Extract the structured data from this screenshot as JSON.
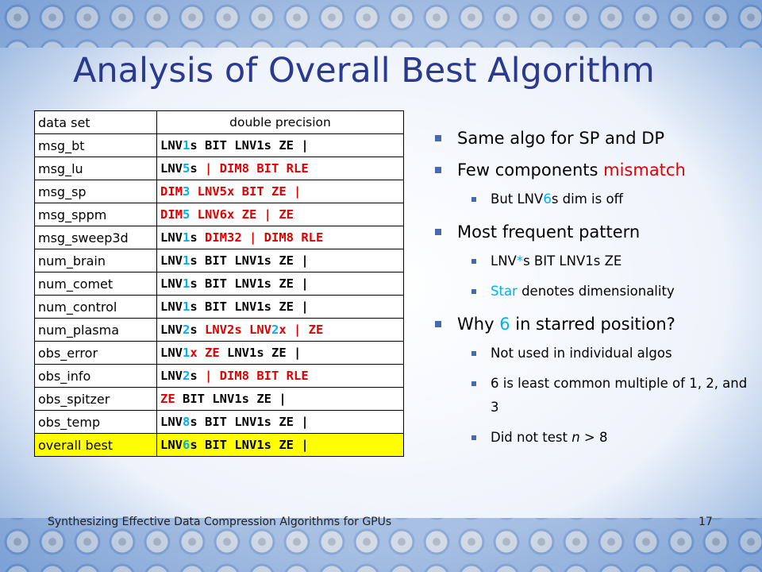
{
  "title": "Analysis of Overall Best Algorithm",
  "table": {
    "header": [
      "data set",
      "double precision"
    ],
    "rows": [
      {
        "name": "msg_bt",
        "algo": [
          {
            "text": "LNV",
            "color": "#000000"
          },
          {
            "text": "1",
            "color": "#00b0f0"
          },
          {
            "text": "s BIT LNV1s ZE |",
            "color": "#000000"
          }
        ]
      },
      {
        "name": "msg_lu",
        "algo": [
          {
            "text": "LNV",
            "color": "#000000"
          },
          {
            "text": "5",
            "color": "#00b0f0"
          },
          {
            "text": "s",
            "color": "#000000"
          },
          {
            "text": " | DIM8 BIT RLE",
            "color": "#e00000"
          }
        ]
      },
      {
        "name": "msg_sp",
        "algo": [
          {
            "text": "DIM",
            "color": "#e00000"
          },
          {
            "text": "3",
            "color": "#00b0f0"
          },
          {
            "text": " LNV5x BIT ZE |",
            "color": "#e00000"
          }
        ]
      },
      {
        "name": "msg_sppm",
        "algo": [
          {
            "text": "DIM",
            "color": "#e00000"
          },
          {
            "text": "5",
            "color": "#00b0f0"
          },
          {
            "text": " LNV6x ZE | ZE",
            "color": "#e00000"
          }
        ]
      },
      {
        "name": "msg_sweep3d",
        "algo": [
          {
            "text": "LNV",
            "color": "#000000"
          },
          {
            "text": "1",
            "color": "#00b0f0"
          },
          {
            "text": "s ",
            "color": "#000000"
          },
          {
            "text": "DIM32 | DIM8 RLE",
            "color": "#e00000"
          }
        ]
      },
      {
        "name": "num_brain",
        "algo": [
          {
            "text": "LNV",
            "color": "#000000"
          },
          {
            "text": "1",
            "color": "#00b0f0"
          },
          {
            "text": "s BIT LNV1s ZE |",
            "color": "#000000"
          }
        ]
      },
      {
        "name": "num_comet",
        "algo": [
          {
            "text": "LNV",
            "color": "#000000"
          },
          {
            "text": "1",
            "color": "#00b0f0"
          },
          {
            "text": "s BIT LNV1s ZE |",
            "color": "#000000"
          }
        ]
      },
      {
        "name": "num_control",
        "algo": [
          {
            "text": "LNV",
            "color": "#000000"
          },
          {
            "text": "1",
            "color": "#00b0f0"
          },
          {
            "text": "s BIT LNV1s ZE |",
            "color": "#000000"
          }
        ]
      },
      {
        "name": "num_plasma",
        "algo": [
          {
            "text": "LNV",
            "color": "#000000"
          },
          {
            "text": "2",
            "color": "#00b0f0"
          },
          {
            "text": "s ",
            "color": "#000000"
          },
          {
            "text": "LNV2s LNV",
            "color": "#e00000"
          },
          {
            "text": "2",
            "color": "#00b0f0"
          },
          {
            "text": "x | ZE",
            "color": "#e00000"
          }
        ]
      },
      {
        "name": "obs_error",
        "algo": [
          {
            "text": "LNV",
            "color": "#000000"
          },
          {
            "text": "1",
            "color": "#00b0f0"
          },
          {
            "text": "x ZE",
            "color": "#e00000"
          },
          {
            "text": " LNV1s ZE |",
            "color": "#000000"
          }
        ]
      },
      {
        "name": "obs_info",
        "algo": [
          {
            "text": "LNV",
            "color": "#000000"
          },
          {
            "text": "2",
            "color": "#00b0f0"
          },
          {
            "text": "s",
            "color": "#000000"
          },
          {
            "text": " | DIM8 BIT RLE",
            "color": "#e00000"
          }
        ]
      },
      {
        "name": "obs_spitzer",
        "algo": [
          {
            "text": "ZE",
            "color": "#e00000"
          },
          {
            "text": " BIT LNV1s ZE |",
            "color": "#000000"
          }
        ]
      },
      {
        "name": "obs_temp",
        "algo": [
          {
            "text": "LNV",
            "color": "#000000"
          },
          {
            "text": "8",
            "color": "#00b0f0"
          },
          {
            "text": "s BIT LNV1s ZE |",
            "color": "#000000"
          }
        ]
      },
      {
        "name": "overall best",
        "highlight": "#ffff00",
        "algo": [
          {
            "text": "LNV",
            "color": "#000000"
          },
          {
            "text": "6",
            "color": "#00b0f0"
          },
          {
            "text": "s BIT LNV1s ZE |",
            "color": "#000000"
          }
        ]
      }
    ]
  },
  "bullets": [
    {
      "level": 1,
      "parts": [
        {
          "text": "Same algo for SP and DP",
          "color": "#000000"
        }
      ]
    },
    {
      "level": 1,
      "parts": [
        {
          "text": "Few components ",
          "color": "#000000"
        },
        {
          "text": "mismatch",
          "color": "#e00000"
        }
      ]
    },
    {
      "level": 2,
      "parts": [
        {
          "text": "But LNV",
          "color": "#000000"
        },
        {
          "text": "6",
          "color": "#00b0f0"
        },
        {
          "text": "s dim is off",
          "color": "#000000"
        }
      ]
    },
    {
      "level": 1,
      "parts": [
        {
          "text": "Most frequent pattern",
          "color": "#000000"
        }
      ]
    },
    {
      "level": 2,
      "parts": [
        {
          "text": "LNV",
          "color": "#000000"
        },
        {
          "text": "*",
          "color": "#00b0f0"
        },
        {
          "text": "s BIT LNV1s ZE",
          "color": "#000000"
        }
      ]
    },
    {
      "level": 2,
      "parts": [
        {
          "text": "Star",
          "color": "#00b0f0"
        },
        {
          "text": " denotes dimensionality",
          "color": "#000000"
        }
      ]
    },
    {
      "level": 1,
      "parts": [
        {
          "text": "Why ",
          "color": "#000000"
        },
        {
          "text": "6",
          "color": "#00b0f0"
        },
        {
          "text": " in starred position?",
          "color": "#000000"
        }
      ]
    },
    {
      "level": 2,
      "parts": [
        {
          "text": "Not used in individual algos",
          "color": "#000000"
        }
      ]
    },
    {
      "level": 2,
      "parts": [
        {
          "text": "6 is least common multiple of 1, 2, and 3",
          "color": "#000000"
        }
      ]
    },
    {
      "level": 2,
      "parts": [
        {
          "text": "Did not test ",
          "color": "#000000"
        },
        {
          "text": "n",
          "color": "#000000",
          "italic": true
        },
        {
          "text": " > 8",
          "color": "#000000"
        }
      ]
    }
  ],
  "footer": {
    "text": "Synthesizing Effective Data Compression Algorithms for GPUs",
    "page": "17"
  }
}
